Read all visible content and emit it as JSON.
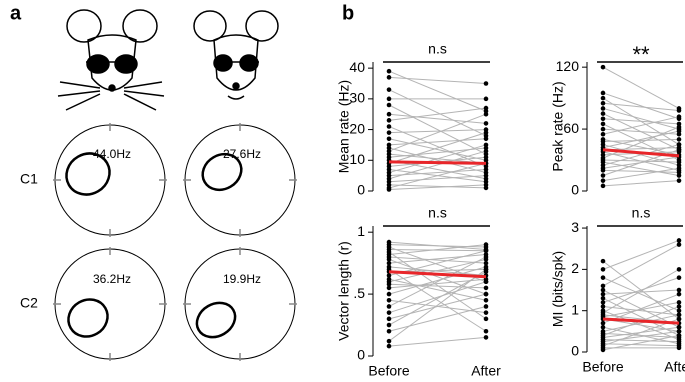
{
  "panel_labels": [
    "a",
    "b"
  ],
  "panel_a": {
    "rows": [
      "C1",
      "C2"
    ],
    "rates": [
      [
        "44.0Hz",
        "27.6Hz"
      ],
      [
        "36.2Hz",
        "19.9Hz"
      ]
    ]
  },
  "chart_data": [
    {
      "type": "paired",
      "ylabel": "Mean rate (Hz)",
      "annotation": "n.s",
      "ylim": [
        0,
        42
      ],
      "yticks": [
        0,
        10,
        20,
        30,
        40
      ],
      "line_color": "#b4b4b4",
      "mean_color": "#e8262a",
      "before": [
        39,
        37,
        33,
        30,
        28,
        25,
        23,
        21,
        19,
        17,
        15,
        14,
        13,
        12,
        11,
        10,
        9,
        8,
        7,
        6,
        5,
        4,
        3,
        2,
        1,
        0.5
      ],
      "after": [
        26,
        35,
        18,
        30,
        12,
        22,
        27,
        8,
        20,
        10,
        17,
        6,
        25,
        9,
        14,
        4,
        19,
        11,
        3,
        15,
        7,
        13,
        5,
        1,
        9,
        2
      ],
      "mean": [
        9.5,
        9.0
      ]
    },
    {
      "type": "paired",
      "ylabel": "Peak rate (Hz)",
      "annotation": "**",
      "ylim": [
        0,
        125
      ],
      "yticks": [
        0,
        60,
        120
      ],
      "line_color": "#b4b4b4",
      "mean_color": "#e8262a",
      "before": [
        120,
        95,
        90,
        85,
        80,
        75,
        70,
        65,
        60,
        55,
        50,
        48,
        45,
        42,
        40,
        38,
        35,
        32,
        30,
        28,
        25,
        22,
        20,
        15,
        10,
        5
      ],
      "after": [
        80,
        70,
        45,
        78,
        60,
        40,
        65,
        30,
        55,
        72,
        35,
        50,
        25,
        58,
        42,
        20,
        38,
        62,
        28,
        15,
        45,
        33,
        18,
        40,
        22,
        10
      ],
      "mean": [
        40,
        34
      ]
    },
    {
      "type": "paired",
      "ylabel": "Vector length (r)",
      "annotation": "n.s",
      "ylim": [
        0,
        1.05
      ],
      "yticks": [
        0,
        {
          "value": 0.5,
          "label": ".5"
        },
        1
      ],
      "line_color": "#b4b4b4",
      "mean_color": "#e8262a",
      "categories": [
        "Before",
        "After"
      ],
      "before": [
        0.9,
        0.88,
        0.86,
        0.84,
        0.82,
        0.8,
        0.78,
        0.75,
        0.72,
        0.7,
        0.68,
        0.65,
        0.62,
        0.6,
        0.58,
        0.55,
        0.5,
        0.45,
        0.4,
        0.35,
        0.3,
        0.25,
        0.2,
        0.12,
        0.08,
        0.92
      ],
      "after": [
        0.88,
        0.6,
        0.85,
        0.3,
        0.9,
        0.75,
        0.5,
        0.82,
        0.65,
        0.2,
        0.7,
        0.85,
        0.45,
        0.78,
        0.55,
        0.62,
        0.72,
        0.35,
        0.8,
        0.6,
        0.5,
        0.68,
        0.4,
        0.7,
        0.15,
        0.86
      ],
      "mean": [
        0.68,
        0.64
      ]
    },
    {
      "type": "paired",
      "ylabel": "MI (bits/spk)",
      "annotation": "n.s",
      "ylim": [
        0,
        3.05
      ],
      "yticks": [
        0,
        1,
        2,
        3
      ],
      "line_color": "#b4b4b4",
      "mean_color": "#e8262a",
      "categories": [
        "Before",
        "After"
      ],
      "before": [
        2.2,
        2.0,
        1.8,
        1.6,
        1.5,
        1.4,
        1.3,
        1.2,
        1.1,
        1.0,
        0.95,
        0.9,
        0.85,
        0.8,
        0.7,
        0.6,
        0.5,
        0.45,
        0.4,
        0.35,
        0.3,
        0.25,
        0.2,
        0.15,
        0.1,
        0.05
      ],
      "after": [
        0.8,
        2.7,
        1.0,
        2.6,
        0.6,
        1.5,
        0.4,
        1.8,
        0.9,
        0.3,
        2.0,
        0.7,
        1.2,
        0.5,
        1.4,
        0.2,
        0.9,
        0.35,
        1.1,
        0.6,
        0.25,
        0.5,
        0.15,
        0.8,
        0.1,
        0.4
      ],
      "mean": [
        0.8,
        0.7
      ]
    }
  ]
}
